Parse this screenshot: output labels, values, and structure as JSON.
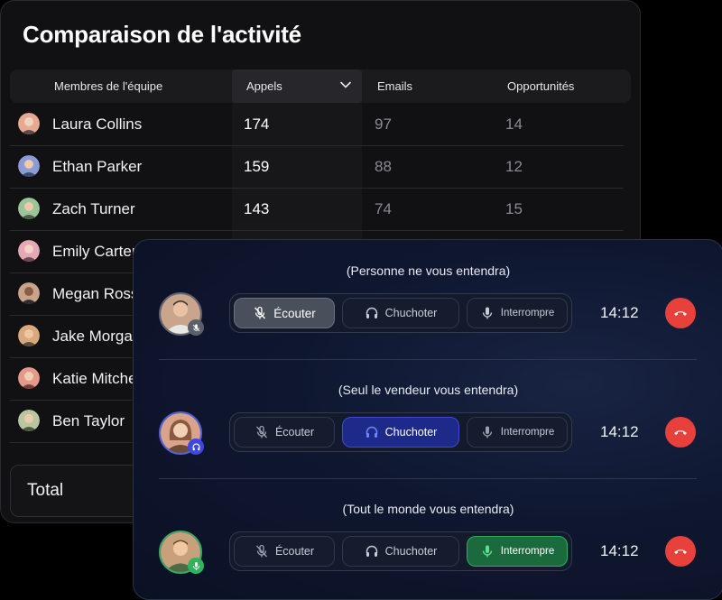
{
  "panel": {
    "title": "Comparaison de l'activité",
    "columns": {
      "member": "Membres de l'équipe",
      "calls": "Appels",
      "emails": "Emails",
      "opportunities": "Opportunités"
    },
    "rows": [
      {
        "name": "Laura Collins",
        "calls": "174",
        "emails": "97",
        "opportunities": "14",
        "avatar_color": "#e7a98f"
      },
      {
        "name": "Ethan Parker",
        "calls": "159",
        "emails": "88",
        "opportunities": "12",
        "avatar_color": "#8a9bd6"
      },
      {
        "name": "Zach Turner",
        "calls": "143",
        "emails": "74",
        "opportunities": "15",
        "avatar_color": "#9bc49a"
      },
      {
        "name": "Emily Carter",
        "calls": "",
        "emails": "",
        "opportunities": "",
        "avatar_color": "#e6a7b6"
      },
      {
        "name": "Megan Ross",
        "calls": "",
        "emails": "",
        "opportunities": "",
        "avatar_color": "#c9a48a"
      },
      {
        "name": "Jake Morga",
        "calls": "",
        "emails": "",
        "opportunities": "",
        "avatar_color": "#d9a87c"
      },
      {
        "name": "Katie Mitche",
        "calls": "",
        "emails": "",
        "opportunities": "",
        "avatar_color": "#e39a8c"
      },
      {
        "name": "Ben Taylor",
        "calls": "",
        "emails": "",
        "opportunities": "",
        "avatar_color": "#b9c7a1"
      }
    ],
    "total_label": "Total"
  },
  "monitor": {
    "sections": [
      {
        "hint": "(Personne ne vous entendra)",
        "mode": "listen",
        "buttons": {
          "listen": "Écouter",
          "whisper": "Chuchoter",
          "barge": "Interrompre"
        },
        "timer": "14:12",
        "avatar_color": "#c8a58c",
        "badge_icon": "mic-off-icon"
      },
      {
        "hint": "(Seul le vendeur vous entendra)",
        "mode": "whisper",
        "buttons": {
          "listen": "Écouter",
          "whisper": "Chuchoter",
          "barge": "Interrompre"
        },
        "timer": "14:12",
        "avatar_color": "#d9a489",
        "badge_icon": "headphones-icon"
      },
      {
        "hint": "(Tout le monde vous entendra)",
        "mode": "barge",
        "buttons": {
          "listen": "Écouter",
          "whisper": "Chuchoter",
          "barge": "Interrompre"
        },
        "timer": "14:12",
        "avatar_color": "#c9a07c",
        "badge_icon": "mic-icon"
      }
    ],
    "colors": {
      "hangup": "#e8403a",
      "whisper_active": "#1d2a8a",
      "barge_active": "#1a6a3e"
    }
  }
}
